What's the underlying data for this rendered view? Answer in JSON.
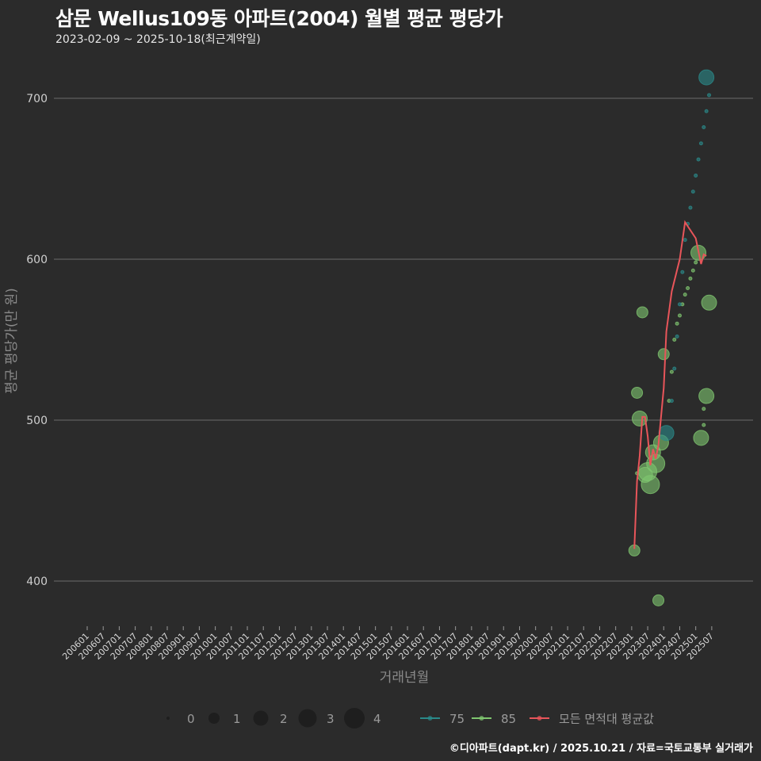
{
  "header": {
    "title": "삼문 Wellus109동 아파트(2004) 월별 평균 평당가",
    "subtitle": "2023-02-09 ~ 2025-10-18(최근계약일)"
  },
  "footer": {
    "credit": "©디아파트(dapt.kr) / 2025.10.21 / 자료=국토교통부 실거래가"
  },
  "colors": {
    "background": "#2b2b2b",
    "grid": "#6b6b6b",
    "series_75": "#2a8a8a",
    "series_85": "#7fc66f",
    "avg_line": "#e8555a"
  },
  "chart_data": {
    "type": "scatter",
    "title": "삼문 Wellus109동 아파트(2004) 월별 평균 평당가",
    "subtitle": "2023-02-09 ~ 2025-10-18(최근계약일)",
    "xlabel": "거래년월",
    "ylabel": "평균 평당가(만 원)",
    "ylim": [
      372,
      722
    ],
    "yticks": [
      400,
      500,
      600,
      700
    ],
    "xticks": [
      "200601",
      "200607",
      "200701",
      "200707",
      "200801",
      "200807",
      "200901",
      "200907",
      "201001",
      "201007",
      "201101",
      "201107",
      "201201",
      "201207",
      "201301",
      "201307",
      "201401",
      "201407",
      "201501",
      "201507",
      "201601",
      "201607",
      "201701",
      "201707",
      "201801",
      "201807",
      "201901",
      "201907",
      "202001",
      "202007",
      "202101",
      "202107",
      "202201",
      "202207",
      "202301",
      "202307",
      "202401",
      "202407",
      "202501",
      "202507"
    ],
    "grid": true,
    "legend": {
      "size": {
        "title": "",
        "values": [
          "0",
          "1",
          "2",
          "3",
          "4"
        ]
      },
      "color": [
        {
          "name": "75",
          "color": "#2a8a8a"
        },
        {
          "name": "85",
          "color": "#7fc66f"
        },
        {
          "name": "모든 면적대 평균값",
          "color": "#e8555a"
        }
      ],
      "position": "bottom"
    },
    "series": [
      {
        "name": "75",
        "points": [
          {
            "x": "202402",
            "y": 492,
            "size": 2
          },
          {
            "x": "202505",
            "y": 713,
            "size": 2
          },
          {
            "x": "202404",
            "y": 512,
            "size": 0
          },
          {
            "x": "202405",
            "y": 532,
            "size": 0
          },
          {
            "x": "202406",
            "y": 552,
            "size": 0
          },
          {
            "x": "202407",
            "y": 572,
            "size": 0
          },
          {
            "x": "202408",
            "y": 592,
            "size": 0
          },
          {
            "x": "202409",
            "y": 612,
            "size": 0
          },
          {
            "x": "202410",
            "y": 622,
            "size": 0
          },
          {
            "x": "202411",
            "y": 632,
            "size": 0
          },
          {
            "x": "202412",
            "y": 642,
            "size": 0
          },
          {
            "x": "202501",
            "y": 652,
            "size": 0
          },
          {
            "x": "202502",
            "y": 662,
            "size": 0
          },
          {
            "x": "202503",
            "y": 672,
            "size": 0
          },
          {
            "x": "202504",
            "y": 682,
            "size": 0
          },
          {
            "x": "202505",
            "y": 692,
            "size": 0
          },
          {
            "x": "202506",
            "y": 702,
            "size": 0
          }
        ]
      },
      {
        "name": "85",
        "points": [
          {
            "x": "202302",
            "y": 419,
            "size": 1
          },
          {
            "x": "202303",
            "y": 467,
            "size": 0
          },
          {
            "x": "202303",
            "y": 517,
            "size": 1
          },
          {
            "x": "202304",
            "y": 501,
            "size": 2
          },
          {
            "x": "202305",
            "y": 567,
            "size": 1
          },
          {
            "x": "202306",
            "y": 466,
            "size": 2
          },
          {
            "x": "202307",
            "y": 468,
            "size": 3
          },
          {
            "x": "202308",
            "y": 460,
            "size": 3
          },
          {
            "x": "202309",
            "y": 480,
            "size": 2
          },
          {
            "x": "202310",
            "y": 473,
            "size": 3
          },
          {
            "x": "202311",
            "y": 388,
            "size": 1
          },
          {
            "x": "202312",
            "y": 486,
            "size": 2
          },
          {
            "x": "202401",
            "y": 541,
            "size": 1
          },
          {
            "x": "202502",
            "y": 604,
            "size": 2
          },
          {
            "x": "202503",
            "y": 489,
            "size": 2
          },
          {
            "x": "202505",
            "y": 515,
            "size": 2
          },
          {
            "x": "202506",
            "y": 573,
            "size": 2
          },
          {
            "x": "202403",
            "y": 512,
            "size": 0
          },
          {
            "x": "202404",
            "y": 530,
            "size": 0
          },
          {
            "x": "202405",
            "y": 550,
            "size": 0
          },
          {
            "x": "202406",
            "y": 560,
            "size": 0
          },
          {
            "x": "202407",
            "y": 565,
            "size": 0
          },
          {
            "x": "202408",
            "y": 572,
            "size": 0
          },
          {
            "x": "202409",
            "y": 578,
            "size": 0
          },
          {
            "x": "202410",
            "y": 582,
            "size": 0
          },
          {
            "x": "202411",
            "y": 588,
            "size": 0
          },
          {
            "x": "202412",
            "y": 593,
            "size": 0
          },
          {
            "x": "202501",
            "y": 598,
            "size": 0
          },
          {
            "x": "202504",
            "y": 497,
            "size": 0
          },
          {
            "x": "202504",
            "y": 507,
            "size": 0
          }
        ]
      },
      {
        "name": "모든 면적대 평균값",
        "type": "line",
        "points": [
          {
            "x": "202302",
            "y": 420
          },
          {
            "x": "202303",
            "y": 462
          },
          {
            "x": "202304",
            "y": 478
          },
          {
            "x": "202305",
            "y": 502
          },
          {
            "x": "202306",
            "y": 502
          },
          {
            "x": "202307",
            "y": 490
          },
          {
            "x": "202308",
            "y": 472
          },
          {
            "x": "202309",
            "y": 482
          },
          {
            "x": "202310",
            "y": 476
          },
          {
            "x": "202311",
            "y": 484
          },
          {
            "x": "202401",
            "y": 520
          },
          {
            "x": "202402",
            "y": 555
          },
          {
            "x": "202404",
            "y": 580
          },
          {
            "x": "202407",
            "y": 600
          },
          {
            "x": "202409",
            "y": 623
          },
          {
            "x": "202501",
            "y": 613
          },
          {
            "x": "202503",
            "y": 597
          },
          {
            "x": "202504",
            "y": 603
          },
          {
            "x": "202505",
            "y": 602
          }
        ]
      }
    ]
  },
  "axis": {
    "xlabel": "거래년월",
    "ylabel": "평균 평당가(만 원)"
  }
}
